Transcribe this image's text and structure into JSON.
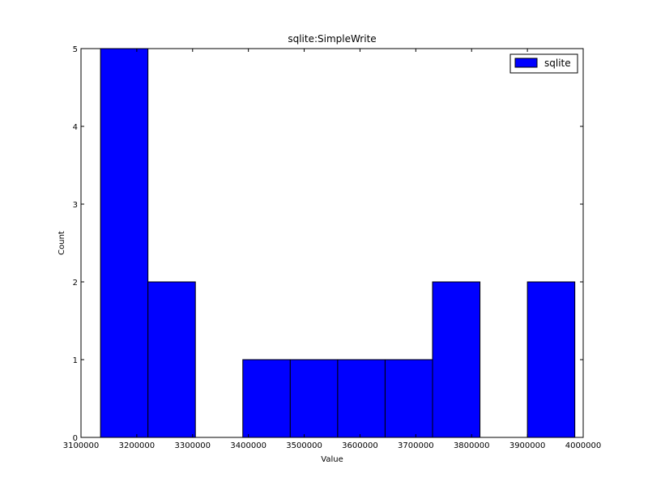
{
  "chart_data": {
    "type": "bar",
    "title": "sqlite:SimpleWrite",
    "xlabel": "Value",
    "ylabel": "Count",
    "xlim": [
      3100000,
      4000000
    ],
    "ylim": [
      0,
      5
    ],
    "xticks": [
      3100000,
      3200000,
      3300000,
      3400000,
      3500000,
      3600000,
      3700000,
      3800000,
      3900000,
      4000000
    ],
    "xtick_labels": [
      "3100000",
      "3200000",
      "3300000",
      "3400000",
      "3500000",
      "3600000",
      "3700000",
      "3800000",
      "3900000",
      "4000000"
    ],
    "yticks": [
      0,
      1,
      2,
      3,
      4,
      5
    ],
    "ytick_labels": [
      "0",
      "1",
      "2",
      "3",
      "4",
      "5"
    ],
    "bin_edges": [
      3135000,
      3220000,
      3305000,
      3390000,
      3475000,
      3560000,
      3645000,
      3730000,
      3815000,
      3900000,
      3985000
    ],
    "series": [
      {
        "name": "sqlite",
        "color": "#0000ff",
        "values": [
          5,
          2,
          0,
          1,
          1,
          1,
          1,
          2,
          0,
          2
        ]
      }
    ],
    "legend": {
      "position": "top-right",
      "entries": [
        "sqlite"
      ]
    },
    "grid": false
  }
}
